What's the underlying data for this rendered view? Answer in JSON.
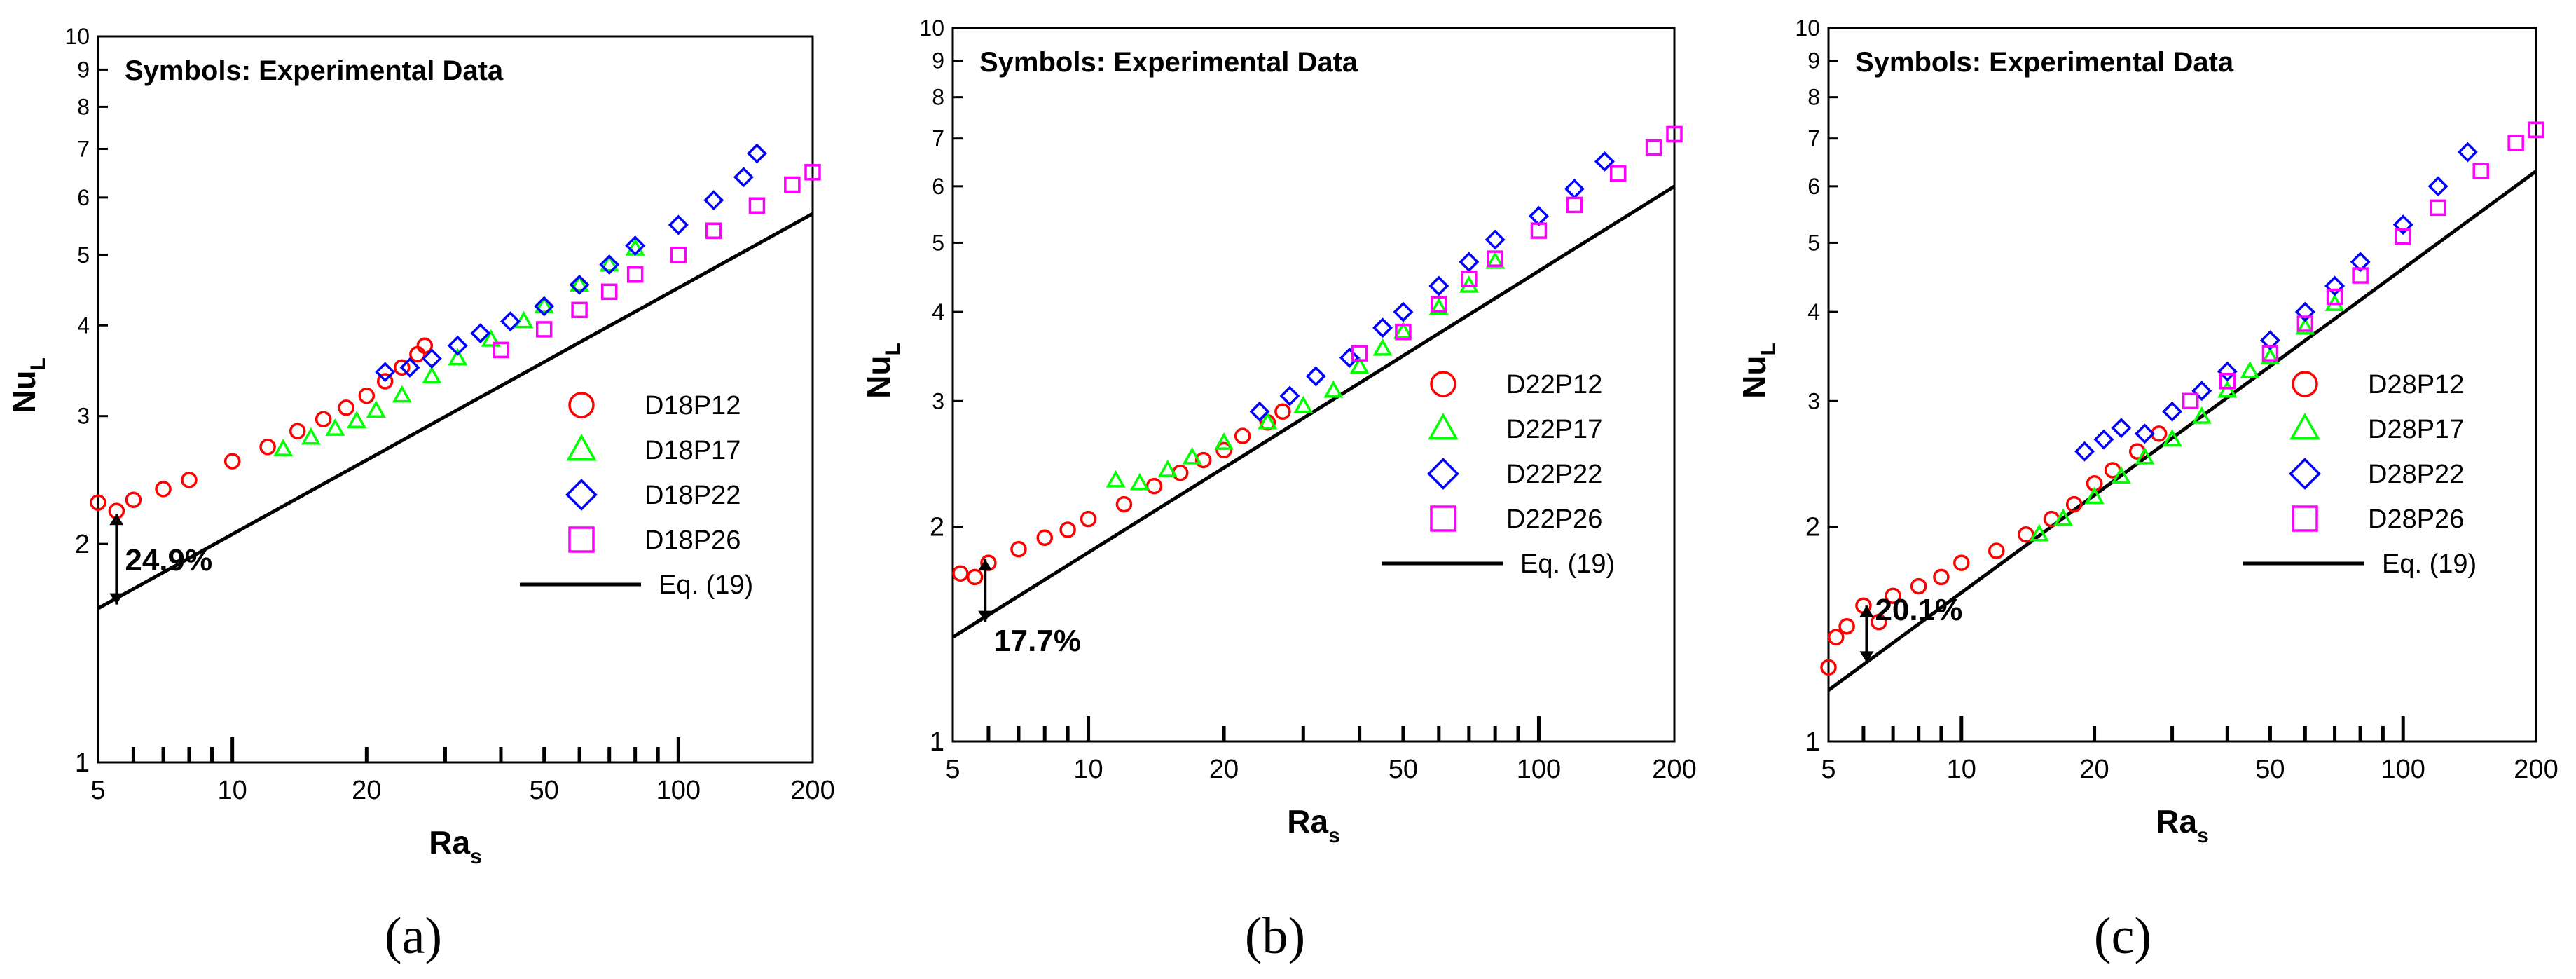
{
  "figure": {
    "captions": [
      "(a)",
      "(b)",
      "(c)"
    ]
  },
  "chart_data": [
    {
      "type": "scatter",
      "xscale": "log",
      "yscale": "log",
      "xlim": [
        5,
        200
      ],
      "ylim": [
        1,
        10
      ],
      "xlabel": "Ra",
      "xlabel_sub": "s",
      "ylabel": "Nu",
      "ylabel_sub": "L",
      "x_ticks": [
        "5",
        "10",
        "20",
        "50",
        "100",
        "200"
      ],
      "y_ticks": [
        "1",
        "2",
        "3",
        "4",
        "5",
        "6",
        "7",
        "8",
        "9",
        "10"
      ],
      "annotation": "Symbols: Experimental Data",
      "deviation_label": "24.9%",
      "deviation_arrow": {
        "x": 5.5,
        "y_from": 2.2,
        "y_to": 1.65
      },
      "legend_position": "bottom-right",
      "line": {
        "name": "Eq. (19)",
        "points": [
          [
            5,
            1.63
          ],
          [
            200,
            5.7
          ]
        ],
        "color": "#000000"
      },
      "series": [
        {
          "name": "D18P12",
          "marker": "circle",
          "color": "#ff0000",
          "points": [
            [
              5,
              2.28
            ],
            [
              5.5,
              2.22
            ],
            [
              6,
              2.3
            ],
            [
              7,
              2.38
            ],
            [
              8,
              2.45
            ],
            [
              10,
              2.6
            ],
            [
              12,
              2.72
            ],
            [
              14,
              2.86
            ],
            [
              16,
              2.97
            ],
            [
              18,
              3.08
            ],
            [
              20,
              3.2
            ],
            [
              22,
              3.35
            ],
            [
              24,
              3.5
            ],
            [
              26,
              3.65
            ],
            [
              27,
              3.75
            ]
          ]
        },
        {
          "name": "D18P17",
          "marker": "triangle",
          "color": "#00ff00",
          "points": [
            [
              13,
              2.7
            ],
            [
              15,
              2.8
            ],
            [
              17,
              2.88
            ],
            [
              19,
              2.95
            ],
            [
              21,
              3.05
            ],
            [
              24,
              3.2
            ],
            [
              28,
              3.4
            ],
            [
              32,
              3.6
            ],
            [
              38,
              3.82
            ],
            [
              45,
              4.05
            ],
            [
              50,
              4.25
            ],
            [
              60,
              4.55
            ],
            [
              70,
              4.85
            ],
            [
              80,
              5.1
            ]
          ]
        },
        {
          "name": "D18P22",
          "marker": "diamond",
          "color": "#0000ff",
          "points": [
            [
              22,
              3.45
            ],
            [
              25,
              3.5
            ],
            [
              28,
              3.6
            ],
            [
              32,
              3.75
            ],
            [
              36,
              3.9
            ],
            [
              42,
              4.05
            ],
            [
              50,
              4.25
            ],
            [
              60,
              4.55
            ],
            [
              70,
              4.85
            ],
            [
              80,
              5.15
            ],
            [
              100,
              5.5
            ],
            [
              120,
              5.95
            ],
            [
              140,
              6.4
            ],
            [
              150,
              6.9
            ]
          ]
        },
        {
          "name": "D18P26",
          "marker": "square",
          "color": "#ff00ff",
          "points": [
            [
              40,
              3.7
            ],
            [
              50,
              3.95
            ],
            [
              60,
              4.2
            ],
            [
              70,
              4.45
            ],
            [
              80,
              4.7
            ],
            [
              100,
              5.0
            ],
            [
              120,
              5.4
            ],
            [
              150,
              5.85
            ],
            [
              180,
              6.25
            ],
            [
              200,
              6.5
            ]
          ]
        }
      ]
    },
    {
      "type": "scatter",
      "xscale": "log",
      "yscale": "log",
      "xlim": [
        5,
        200
      ],
      "ylim": [
        1,
        10
      ],
      "xlabel": "Ra",
      "xlabel_sub": "s",
      "ylabel": "Nu",
      "ylabel_sub": "L",
      "x_ticks": [
        "5",
        "10",
        "20",
        "50",
        "100",
        "200"
      ],
      "y_ticks": [
        "1",
        "2",
        "3",
        "4",
        "5",
        "6",
        "7",
        "8",
        "9",
        "10"
      ],
      "annotation": "Symbols: Experimental Data",
      "deviation_label": "17.7%",
      "deviation_arrow": {
        "x": 5.9,
        "y_from": 1.8,
        "y_to": 1.47
      },
      "legend_position": "bottom-right",
      "line": {
        "name": "Eq. (19)",
        "points": [
          [
            5,
            1.4
          ],
          [
            200,
            6.0
          ]
        ],
        "color": "#000000"
      },
      "series": [
        {
          "name": "D22P12",
          "marker": "circle",
          "color": "#ff0000",
          "points": [
            [
              5.2,
              1.72
            ],
            [
              5.6,
              1.7
            ],
            [
              6,
              1.78
            ],
            [
              7,
              1.86
            ],
            [
              8,
              1.93
            ],
            [
              9,
              1.98
            ],
            [
              10,
              2.05
            ],
            [
              12,
              2.15
            ],
            [
              14,
              2.28
            ],
            [
              16,
              2.38
            ],
            [
              18,
              2.48
            ],
            [
              20,
              2.56
            ],
            [
              22,
              2.68
            ],
            [
              25,
              2.8
            ],
            [
              27,
              2.9
            ]
          ]
        },
        {
          "name": "D22P17",
          "marker": "triangle",
          "color": "#00ff00",
          "points": [
            [
              11.5,
              2.32
            ],
            [
              13,
              2.3
            ],
            [
              15,
              2.4
            ],
            [
              17,
              2.5
            ],
            [
              20,
              2.62
            ],
            [
              25,
              2.8
            ],
            [
              30,
              2.95
            ],
            [
              35,
              3.1
            ],
            [
              40,
              3.35
            ],
            [
              45,
              3.55
            ],
            [
              50,
              3.75
            ],
            [
              60,
              4.05
            ],
            [
              70,
              4.35
            ],
            [
              80,
              4.7
            ]
          ]
        },
        {
          "name": "D22P22",
          "marker": "diamond",
          "color": "#0000ff",
          "points": [
            [
              24,
              2.9
            ],
            [
              28,
              3.05
            ],
            [
              32,
              3.25
            ],
            [
              38,
              3.45
            ],
            [
              45,
              3.8
            ],
            [
              50,
              4.0
            ],
            [
              60,
              4.35
            ],
            [
              70,
              4.7
            ],
            [
              80,
              5.05
            ],
            [
              100,
              5.45
            ],
            [
              120,
              5.95
            ],
            [
              140,
              6.5
            ]
          ]
        },
        {
          "name": "D22P26",
          "marker": "square",
          "color": "#ff00ff",
          "points": [
            [
              40,
              3.5
            ],
            [
              50,
              3.75
            ],
            [
              60,
              4.1
            ],
            [
              70,
              4.45
            ],
            [
              80,
              4.75
            ],
            [
              100,
              5.2
            ],
            [
              120,
              5.65
            ],
            [
              150,
              6.25
            ],
            [
              180,
              6.8
            ],
            [
              200,
              7.1
            ]
          ]
        }
      ]
    },
    {
      "type": "scatter",
      "xscale": "log",
      "yscale": "log",
      "xlim": [
        5,
        200
      ],
      "ylim": [
        1,
        10
      ],
      "xlabel": "Ra",
      "xlabel_sub": "s",
      "ylabel": "Nu",
      "ylabel_sub": "L",
      "x_ticks": [
        "5",
        "10",
        "20",
        "50",
        "100",
        "200"
      ],
      "y_ticks": [
        "1",
        "2",
        "3",
        "4",
        "5",
        "6",
        "7",
        "8",
        "9",
        "10"
      ],
      "annotation": "Symbols: Experimental Data",
      "deviation_label": "20.1%",
      "deviation_arrow": {
        "x": 6.1,
        "y_from": 1.55,
        "y_to": 1.29
      },
      "legend_position": "bottom-right",
      "line": {
        "name": "Eq. (19)",
        "points": [
          [
            5,
            1.18
          ],
          [
            200,
            6.3
          ]
        ],
        "color": "#000000"
      },
      "series": [
        {
          "name": "D28P12",
          "marker": "circle",
          "color": "#ff0000",
          "points": [
            [
              5,
              1.27
            ],
            [
              5.2,
              1.4
            ],
            [
              5.5,
              1.45
            ],
            [
              6,
              1.55
            ],
            [
              6.5,
              1.47
            ],
            [
              7,
              1.6
            ],
            [
              8,
              1.65
            ],
            [
              9,
              1.7
            ],
            [
              10,
              1.78
            ],
            [
              12,
              1.85
            ],
            [
              14,
              1.95
            ],
            [
              16,
              2.05
            ],
            [
              18,
              2.15
            ],
            [
              20,
              2.3
            ],
            [
              22,
              2.4
            ],
            [
              25,
              2.55
            ],
            [
              28,
              2.7
            ]
          ]
        },
        {
          "name": "D28P17",
          "marker": "triangle",
          "color": "#00ff00",
          "points": [
            [
              15,
              1.95
            ],
            [
              17,
              2.05
            ],
            [
              20,
              2.2
            ],
            [
              23,
              2.35
            ],
            [
              26,
              2.5
            ],
            [
              30,
              2.65
            ],
            [
              35,
              2.85
            ],
            [
              40,
              3.1
            ],
            [
              45,
              3.3
            ],
            [
              50,
              3.45
            ],
            [
              60,
              3.8
            ],
            [
              70,
              4.1
            ]
          ]
        },
        {
          "name": "D28P22",
          "marker": "diamond",
          "color": "#0000ff",
          "points": [
            [
              19,
              2.55
            ],
            [
              21,
              2.65
            ],
            [
              23,
              2.75
            ],
            [
              26,
              2.7
            ],
            [
              30,
              2.9
            ],
            [
              35,
              3.1
            ],
            [
              40,
              3.3
            ],
            [
              50,
              3.65
            ],
            [
              60,
              4.0
            ],
            [
              70,
              4.35
            ],
            [
              80,
              4.7
            ],
            [
              100,
              5.3
            ],
            [
              120,
              6.0
            ],
            [
              140,
              6.7
            ]
          ]
        },
        {
          "name": "D28P26",
          "marker": "square",
          "color": "#ff00ff",
          "points": [
            [
              33,
              3.0
            ],
            [
              40,
              3.2
            ],
            [
              50,
              3.5
            ],
            [
              60,
              3.85
            ],
            [
              70,
              4.2
            ],
            [
              80,
              4.5
            ],
            [
              100,
              5.1
            ],
            [
              120,
              5.6
            ],
            [
              150,
              6.3
            ],
            [
              180,
              6.9
            ],
            [
              200,
              7.2
            ]
          ]
        }
      ]
    }
  ]
}
